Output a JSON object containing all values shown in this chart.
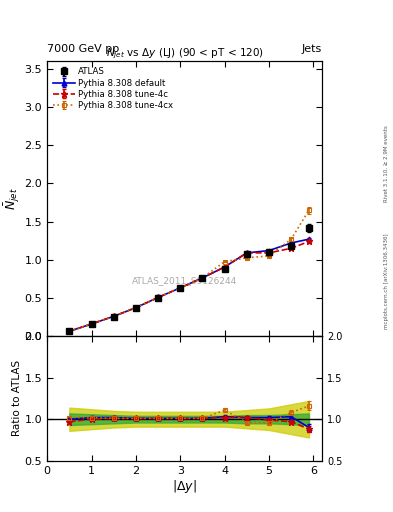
{
  "header_left": "7000 GeV pp",
  "header_right": "Jets",
  "title_main": "$N_{jet}$ vs $\\Delta y$ (LJ) (90 < pT < 120)",
  "watermark": "ATLAS_2011_S9126244",
  "ylabel_main": "$\\bar{N}_{jet}$",
  "ylabel_ratio": "Ratio to ATLAS",
  "xlabel": "$|\\Delta y|$",
  "x_data": [
    0.5,
    1.0,
    1.5,
    2.0,
    2.5,
    3.0,
    3.5,
    4.0,
    4.5,
    5.0,
    5.5,
    5.9
  ],
  "atlas_y": [
    0.06,
    0.155,
    0.255,
    0.37,
    0.5,
    0.625,
    0.755,
    0.88,
    1.07,
    1.1,
    1.18,
    1.42
  ],
  "atlas_yerr": [
    0.005,
    0.008,
    0.01,
    0.012,
    0.015,
    0.018,
    0.022,
    0.025,
    0.03,
    0.032,
    0.038,
    0.055
  ],
  "pythia_default_y": [
    0.062,
    0.158,
    0.258,
    0.372,
    0.505,
    0.632,
    0.762,
    0.905,
    1.09,
    1.12,
    1.22,
    1.27
  ],
  "pythia_default_yerr": [
    0.001,
    0.002,
    0.003,
    0.004,
    0.005,
    0.006,
    0.007,
    0.008,
    0.01,
    0.011,
    0.013,
    0.015
  ],
  "pythia_4c_y": [
    0.062,
    0.158,
    0.258,
    0.372,
    0.505,
    0.632,
    0.762,
    0.905,
    1.09,
    1.09,
    1.15,
    1.24
  ],
  "pythia_4c_yerr": [
    0.001,
    0.002,
    0.003,
    0.004,
    0.005,
    0.006,
    0.007,
    0.008,
    0.01,
    0.011,
    0.013,
    0.015
  ],
  "pythia_4cx_y": [
    0.062,
    0.158,
    0.258,
    0.372,
    0.505,
    0.632,
    0.762,
    0.975,
    1.025,
    1.05,
    1.27,
    1.65
  ],
  "pythia_4cx_yerr": [
    0.001,
    0.002,
    0.003,
    0.004,
    0.005,
    0.006,
    0.007,
    0.01,
    0.012,
    0.013,
    0.02,
    0.045
  ],
  "ratio_default_y": [
    1.0,
    1.02,
    1.02,
    1.01,
    1.01,
    1.01,
    1.01,
    1.03,
    1.02,
    1.02,
    1.03,
    0.9
  ],
  "ratio_default_yerr": [
    0.015,
    0.015,
    0.015,
    0.015,
    0.015,
    0.015,
    0.015,
    0.015,
    0.015,
    0.015,
    0.02,
    0.04
  ],
  "ratio_4c_y": [
    0.97,
    1.0,
    1.01,
    1.01,
    1.01,
    1.01,
    1.01,
    1.02,
    1.02,
    0.99,
    0.97,
    0.88
  ],
  "ratio_4c_yerr": [
    0.015,
    0.015,
    0.015,
    0.015,
    0.015,
    0.015,
    0.015,
    0.015,
    0.015,
    0.015,
    0.02,
    0.035
  ],
  "ratio_4cx_y": [
    1.02,
    1.02,
    1.01,
    1.01,
    1.01,
    1.01,
    1.01,
    1.11,
    0.96,
    0.96,
    1.08,
    1.16
  ],
  "ratio_4cx_yerr": [
    0.015,
    0.015,
    0.015,
    0.015,
    0.015,
    0.015,
    0.015,
    0.015,
    0.015,
    0.015,
    0.025,
    0.055
  ],
  "green_band_lo": [
    0.93,
    0.94,
    0.95,
    0.96,
    0.96,
    0.96,
    0.96,
    0.96,
    0.95,
    0.95,
    0.94,
    0.93
  ],
  "green_band_hi": [
    1.07,
    1.06,
    1.05,
    1.04,
    1.04,
    1.04,
    1.04,
    1.04,
    1.05,
    1.05,
    1.06,
    1.07
  ],
  "yellow_band_lo": [
    0.86,
    0.88,
    0.9,
    0.91,
    0.91,
    0.91,
    0.91,
    0.91,
    0.89,
    0.87,
    0.82,
    0.78
  ],
  "yellow_band_hi": [
    1.14,
    1.12,
    1.1,
    1.09,
    1.09,
    1.09,
    1.09,
    1.09,
    1.11,
    1.13,
    1.18,
    1.22
  ],
  "color_atlas": "#000000",
  "color_default": "#0000cc",
  "color_4c": "#cc0000",
  "color_4cx": "#cc6600",
  "color_green": "#33aa33",
  "color_yellow": "#cccc00",
  "ylim_main": [
    0.0,
    3.6
  ],
  "ylim_ratio": [
    0.5,
    2.0
  ],
  "xlim": [
    0.0,
    6.2
  ],
  "yticks_main": [
    0.0,
    0.5,
    1.0,
    1.5,
    2.0,
    2.5,
    3.0,
    3.5
  ],
  "yticks_ratio": [
    0.5,
    1.0,
    1.5,
    2.0
  ],
  "xticks": [
    0,
    1,
    2,
    3,
    4,
    5,
    6
  ]
}
